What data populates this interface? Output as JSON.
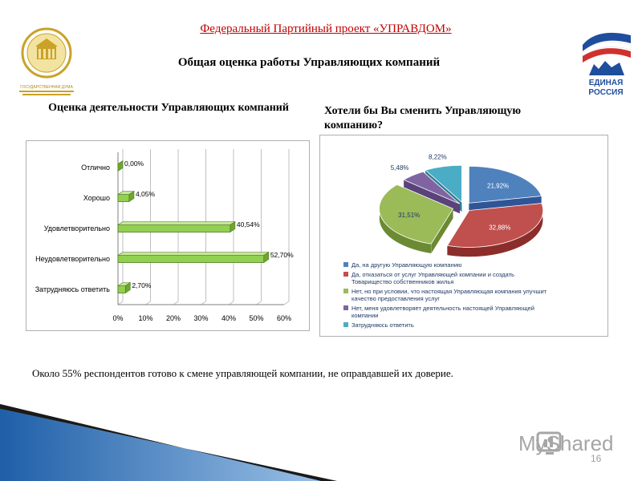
{
  "header": {
    "title": "Федеральный Партийный проект «УПРАВДОМ»",
    "subtitle": "Общая оценка работы Управляющих компаний",
    "duma_logo_text": "ГОСУДАРСТВЕННАЯ ДУМА",
    "er_logo_text": [
      "ЕДИНАЯ",
      "РОССИЯ"
    ]
  },
  "colors": {
    "title_red": "#c00000",
    "bar_green": "#92d050",
    "pie_blue": "#4f81bd",
    "pie_red": "#c0504d",
    "pie_green": "#9bbb59",
    "pie_purple": "#8064a2",
    "pie_cyan": "#4bacc6"
  },
  "chart_data": [
    {
      "type": "bar",
      "orientation": "horizontal",
      "title": "Оценка деятельности Управляющих компаний",
      "categories": [
        "Отлично",
        "Хорошо",
        "Удовлетворительно",
        "Неудовлетворительно",
        "Затрудняюсь ответить"
      ],
      "values": [
        0.0,
        4.05,
        40.54,
        52.7,
        2.7
      ],
      "data_labels": [
        "0,00%",
        "4,05%",
        "40,54%",
        "52,70%",
        "2,70%"
      ],
      "x_ticks": [
        "0%",
        "10%",
        "20%",
        "30%",
        "40%",
        "50%",
        "60%"
      ],
      "xlim": [
        0,
        60
      ],
      "grid": true,
      "legend": "none"
    },
    {
      "type": "pie",
      "title": "Хотели бы Вы сменить Управляющую компанию?",
      "labels": [
        "Да, на другую Управляющую компанию",
        "Да, отказаться от услуг Управляющей компании и создать Товарищество собственников жилья",
        "Нет, но при условии, что настоящая Управляющая компания улучшит качество предоставления услуг",
        "Нет, меня удовлетворяет деятельность настоящей Управляющей компании",
        "Затрудняюсь ответить"
      ],
      "legend_lines": [
        [
          "Да, на другую Управляющую компанию"
        ],
        [
          "Да, отказаться от услуг Управляющей компании и создать",
          "Товарищество собственников жилья"
        ],
        [
          "Нет, но при условии, что настоящая Управляющая компания улучшит",
          "качество предоставления услуг"
        ],
        [
          "Нет, меня удовлетворяет деятельность настоящей Управляющей",
          "компании"
        ],
        [
          "Затрудняюсь ответить"
        ]
      ],
      "values": [
        21.92,
        32.88,
        31.51,
        5.48,
        8.22
      ],
      "data_labels": [
        "21,92%",
        "32,88%",
        "31,51%",
        "5,48%",
        "8,22%"
      ],
      "legend": "bottom",
      "exploded": true
    }
  ],
  "caption": "Около 55% респондентов готово к смене управляющей компании, не оправдавшей их доверие.",
  "footer": {
    "watermark": "MyShared",
    "page_number": "16"
  }
}
